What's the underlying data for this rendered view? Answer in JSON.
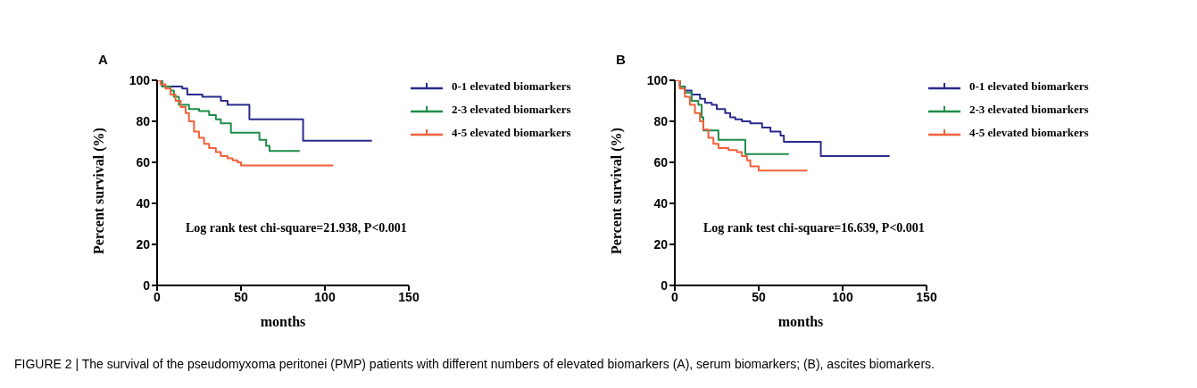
{
  "chart_data": [
    {
      "type": "step",
      "title": "A",
      "xlabel": "months",
      "ylabel": "Percent survival (%)",
      "xlim": [
        0,
        150
      ],
      "xticks": [
        0,
        50,
        100,
        150
      ],
      "ylim": [
        0,
        100
      ],
      "yticks": [
        0,
        20,
        40,
        60,
        80,
        100
      ],
      "grid": false,
      "legend": "right",
      "annotations": [
        "Log rank test chi-square=21.938, P<0.001",
        "FIGURE 2 | The survival of the pseudomyxoma peritonei (PMP) patients with different numbers of elevated biomarkers (A), serum biomarkers; (B), ascites biomarkers."
      ],
      "series": [
        {
          "name": "0-1 elevated biomarkers",
          "color": "#2b2a8c",
          "x": [
            0,
            3,
            15,
            18,
            27,
            38,
            42,
            55,
            87,
            128
          ],
          "values": [
            100,
            97,
            96,
            93,
            92,
            90,
            88,
            81,
            70.5,
            70.5
          ]
        },
        {
          "name": "2-3 elevated biomarkers",
          "color": "#1e8c4a",
          "x": [
            0,
            3,
            8,
            10,
            13,
            19,
            25,
            31,
            35,
            38,
            44,
            61,
            65,
            67,
            85
          ],
          "values": [
            100,
            97,
            95,
            92,
            88,
            86,
            85,
            83,
            81,
            79,
            74.5,
            71,
            68,
            65.5,
            65.5
          ]
        },
        {
          "name": "4-5 elevated biomarkers",
          "color": "#f0603a",
          "x": [
            0,
            2,
            5,
            8,
            11,
            14,
            17,
            19,
            22,
            25,
            28,
            31,
            35,
            38,
            42,
            45,
            48,
            50,
            105
          ],
          "values": [
            100,
            98,
            96,
            93,
            90,
            87,
            84,
            80,
            75,
            72,
            69,
            67,
            65,
            63,
            62,
            61,
            60,
            58.5,
            58.5
          ]
        }
      ]
    },
    {
      "type": "step",
      "title": "B",
      "xlabel": "months",
      "ylabel": "Percent survival (%)",
      "xlim": [
        0,
        150
      ],
      "xticks": [
        0,
        50,
        100,
        150
      ],
      "ylim": [
        0,
        100
      ],
      "yticks": [
        0,
        20,
        40,
        60,
        80,
        100
      ],
      "grid": false,
      "legend": "right",
      "annotations": [
        "Log rank test chi-square=16.639, P<0.001"
      ],
      "series": [
        {
          "name": "0-1 elevated biomarkers",
          "color": "#2b2a8c",
          "x": [
            0,
            3,
            6,
            10,
            15,
            18,
            22,
            25,
            30,
            33,
            36,
            40,
            45,
            52,
            57,
            63,
            65,
            87,
            128
          ],
          "values": [
            100,
            97,
            95,
            93,
            91,
            89,
            88,
            86,
            84,
            82,
            81,
            80,
            79,
            77,
            75,
            73,
            70,
            63,
            63
          ]
        },
        {
          "name": "2-3 elevated biomarkers",
          "color": "#1e8c4a",
          "x": [
            0,
            3,
            6,
            10,
            14,
            16,
            17,
            26,
            42,
            68
          ],
          "values": [
            100,
            97,
            94,
            90,
            88,
            82,
            75.5,
            71,
            64,
            64
          ]
        },
        {
          "name": "4-5 elevated biomarkers",
          "color": "#f0603a",
          "x": [
            0,
            3,
            6,
            9,
            12,
            15,
            17,
            20,
            23,
            26,
            32,
            37,
            40,
            43,
            45,
            50,
            79
          ],
          "values": [
            100,
            96,
            92,
            88,
            84,
            80,
            76,
            72,
            69,
            67,
            66,
            65,
            63,
            61,
            58,
            56,
            56
          ]
        }
      ]
    }
  ]
}
